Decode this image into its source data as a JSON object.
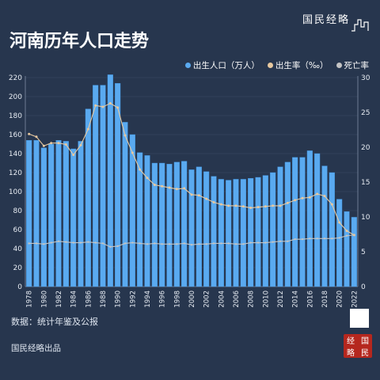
{
  "header": {
    "brand": "国民经略",
    "title": "河南历年人口走势"
  },
  "legend": {
    "births": "出生人口（万人）",
    "birth_rate": "出生率（‰）",
    "death_rate": "死亡率"
  },
  "source": "数据：统计年鉴及公报",
  "footer": "国民经略出品",
  "seal_chars": [
    "经",
    "国",
    "略",
    "民"
  ],
  "colors": {
    "background": "#27364e",
    "bar": "#5aaaf0",
    "bar_edge": "#3f8fd8",
    "birth_rate_line": "#e8c9a0",
    "death_rate_line": "#c4c4c4",
    "grid": "#3b4b66",
    "axis_text": "#e6ebf2"
  },
  "chart_data": {
    "type": "bar",
    "x": [
      "1978",
      "1979",
      "1980",
      "1981",
      "1982",
      "1983",
      "1984",
      "1985",
      "1986",
      "1987",
      "1988",
      "1989",
      "1990",
      "1991",
      "1992",
      "1993",
      "1994",
      "1995",
      "1996",
      "1997",
      "1998",
      "1999",
      "2000",
      "2001",
      "2002",
      "2003",
      "2004",
      "2005",
      "2006",
      "2007",
      "2008",
      "2009",
      "2010",
      "2011",
      "2012",
      "2013",
      "2014",
      "2015",
      "2016",
      "2017",
      "2018",
      "2019",
      "2020",
      "2021",
      "2022"
    ],
    "x_tick_labels": [
      "1978",
      "1980",
      "1982",
      "1984",
      "1986",
      "1988",
      "1990",
      "1992",
      "1994",
      "1996",
      "1998",
      "2000",
      "2002",
      "2004",
      "2006",
      "2008",
      "2010",
      "2012",
      "2014",
      "2016",
      "2018",
      "2020",
      "2022"
    ],
    "series": [
      {
        "name": "出生人口（万人）",
        "axis": "left",
        "kind": "bar",
        "values": [
          154,
          154,
          146,
          150,
          154,
          153,
          145,
          153,
          187,
          212,
          212,
          223,
          214,
          173,
          160,
          141,
          138,
          130,
          130,
          129,
          131,
          132,
          123,
          126,
          121,
          116,
          113,
          112,
          113,
          113,
          114,
          115,
          117,
          120,
          126,
          131,
          136,
          136,
          143,
          140,
          127,
          120,
          92,
          79,
          73
        ]
      },
      {
        "name": "出生率（‰）",
        "axis": "right",
        "kind": "line",
        "values": [
          21.9,
          21.5,
          20.2,
          20.6,
          20.6,
          20.4,
          18.9,
          20.3,
          22.6,
          26.0,
          25.8,
          26.3,
          25.7,
          21.7,
          19.2,
          16.8,
          15.6,
          14.6,
          14.4,
          14.2,
          14.0,
          14.1,
          13.2,
          13.1,
          12.6,
          12.1,
          11.8,
          11.6,
          11.6,
          11.5,
          11.3,
          11.4,
          11.5,
          11.6,
          11.6,
          12.0,
          12.4,
          12.7,
          12.8,
          13.3,
          13.0,
          11.8,
          9.2,
          8.0,
          7.4
        ]
      },
      {
        "name": "死亡率",
        "axis": "right",
        "kind": "line",
        "values": [
          6.2,
          6.2,
          6.1,
          6.3,
          6.5,
          6.4,
          6.3,
          6.3,
          6.4,
          6.3,
          6.2,
          5.7,
          5.8,
          6.2,
          6.3,
          6.2,
          6.1,
          6.2,
          6.1,
          6.1,
          6.1,
          6.2,
          6.0,
          6.1,
          6.1,
          6.2,
          6.2,
          6.2,
          6.1,
          6.1,
          6.3,
          6.3,
          6.3,
          6.4,
          6.5,
          6.5,
          6.8,
          6.8,
          6.9,
          6.9,
          6.9,
          6.9,
          7.0,
          7.3,
          7.4
        ]
      }
    ],
    "y_left": {
      "min": 0,
      "max": 220,
      "ticks": [
        0,
        20,
        40,
        60,
        80,
        100,
        120,
        140,
        160,
        180,
        200,
        220
      ]
    },
    "y_right": {
      "min": 0,
      "max": 30,
      "ticks": [
        0,
        5,
        10,
        15,
        20,
        25,
        30
      ]
    },
    "title": "河南历年人口走势",
    "grid": true,
    "legend_position": "top-right"
  }
}
